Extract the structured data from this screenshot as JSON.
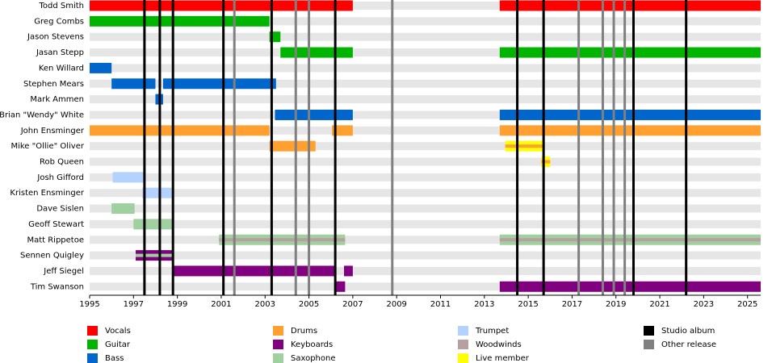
{
  "chart_data": {
    "type": "timeline",
    "xlim": [
      1995,
      2025.6
    ],
    "xticks": [
      1995,
      1997,
      1999,
      2001,
      2003,
      2005,
      2007,
      2009,
      2011,
      2013,
      2015,
      2017,
      2019,
      2021,
      2023,
      2025
    ],
    "roles": [
      {
        "name": "Vocals",
        "color": "#ff0000"
      },
      {
        "name": "Guitar",
        "color": "#00b400"
      },
      {
        "name": "Bass",
        "color": "#0066cc"
      },
      {
        "name": "Drums",
        "color": "#ffa030"
      },
      {
        "name": "Keyboards",
        "color": "#800080"
      },
      {
        "name": "Saxophone",
        "color": "#a0d0a0"
      },
      {
        "name": "Trumpet",
        "color": "#b4d2ff"
      },
      {
        "name": "Woodwinds",
        "color": "#b8a0a0"
      },
      {
        "name": "Live member",
        "color": "#ffff00"
      }
    ],
    "events": [
      {
        "name": "Studio album",
        "color": "#000000",
        "values": [
          1997.5,
          1998.2,
          1998.8,
          2001.1,
          2003.3,
          2006.2,
          2014.5,
          2015.7,
          2019.8,
          2022.2
        ]
      },
      {
        "name": "Other release",
        "color": "#808080",
        "values": [
          2001.6,
          2004.4,
          2005.0,
          2008.8,
          2017.3,
          2018.4,
          2018.9,
          2019.4
        ]
      }
    ],
    "members": [
      {
        "name": "Todd Smith",
        "periods": [
          {
            "role": "Vocals",
            "start": 1995,
            "end": 2007.0
          },
          {
            "role": "Vocals",
            "start": 2013.7,
            "end": 2025.6
          }
        ]
      },
      {
        "name": "Greg Combs",
        "periods": [
          {
            "role": "Guitar",
            "start": 1995,
            "end": 2003.2
          }
        ]
      },
      {
        "name": "Jason Stevens",
        "periods": [
          {
            "role": "Guitar",
            "start": 2003.2,
            "end": 2003.7
          }
        ]
      },
      {
        "name": "Jasan Stepp",
        "periods": [
          {
            "role": "Guitar",
            "start": 2003.7,
            "end": 2007.0
          },
          {
            "role": "Guitar",
            "start": 2013.7,
            "end": 2025.6
          }
        ]
      },
      {
        "name": "Ken Willard",
        "periods": [
          {
            "role": "Bass",
            "start": 1995,
            "end": 1996.0
          }
        ]
      },
      {
        "name": "Stephen Mears",
        "periods": [
          {
            "role": "Bass",
            "start": 1996.0,
            "end": 1998.0
          },
          {
            "role": "Bass",
            "start": 1998.35,
            "end": 2003.5
          }
        ]
      },
      {
        "name": "Mark Ammen",
        "periods": [
          {
            "role": "Bass",
            "start": 1998.0,
            "end": 1998.35
          }
        ]
      },
      {
        "name": "Brian \"Wendy\" White",
        "periods": [
          {
            "role": "Bass",
            "start": 2003.45,
            "end": 2007.0
          },
          {
            "role": "Bass",
            "start": 2013.7,
            "end": 2025.6
          }
        ]
      },
      {
        "name": "John Ensminger",
        "periods": [
          {
            "role": "Drums",
            "start": 1995,
            "end": 2003.2
          },
          {
            "role": "Drums",
            "start": 2006.05,
            "end": 2007.0
          },
          {
            "role": "Drums",
            "start": 2013.7,
            "end": 2025.6
          }
        ]
      },
      {
        "name": "Mike \"Ollie\" Oliver",
        "periods": [
          {
            "role": "Drums",
            "start": 2003.2,
            "end": 2005.3
          },
          {
            "role": "Live member",
            "stripe": "Drums",
            "start": 2013.95,
            "end": 2015.65
          }
        ]
      },
      {
        "name": "Rob Queen",
        "periods": [
          {
            "role": "Live member",
            "stripe": "Drums",
            "start": 2015.6,
            "end": 2016.0
          }
        ]
      },
      {
        "name": "Josh Gifford",
        "periods": [
          {
            "role": "Trumpet",
            "start": 1996.05,
            "end": 1997.45
          }
        ]
      },
      {
        "name": "Kristen Ensminger",
        "periods": [
          {
            "role": "Trumpet",
            "start": 1997.4,
            "end": 1998.8
          }
        ]
      },
      {
        "name": "Dave Sislen",
        "periods": [
          {
            "role": "Saxophone",
            "start": 1996.0,
            "end": 1997.05
          }
        ]
      },
      {
        "name": "Geoff Stewart",
        "periods": [
          {
            "role": "Saxophone",
            "start": 1997.0,
            "end": 1998.8
          }
        ]
      },
      {
        "name": "Matt Rippetoe",
        "periods": [
          {
            "role": "Saxophone",
            "stripe": "Woodwinds",
            "start": 2000.9,
            "end": 2006.65
          },
          {
            "role": "Saxophone",
            "stripe": "Woodwinds",
            "start": 2013.7,
            "end": 2025.6
          }
        ]
      },
      {
        "name": "Sennen Quigley",
        "periods": [
          {
            "role": "Keyboards",
            "stripe": "Saxophone",
            "start": 1997.1,
            "end": 1998.8
          }
        ]
      },
      {
        "name": "Jeff Siegel",
        "periods": [
          {
            "role": "Keyboards",
            "start": 1998.8,
            "end": 2006.25
          },
          {
            "role": "Keyboards",
            "start": 2006.6,
            "end": 2007.0
          }
        ]
      },
      {
        "name": "Tim Swanson",
        "periods": [
          {
            "role": "Keyboards",
            "start": 2006.2,
            "end": 2006.65
          },
          {
            "role": "Keyboards",
            "start": 2013.7,
            "end": 2025.6
          }
        ]
      }
    ]
  }
}
